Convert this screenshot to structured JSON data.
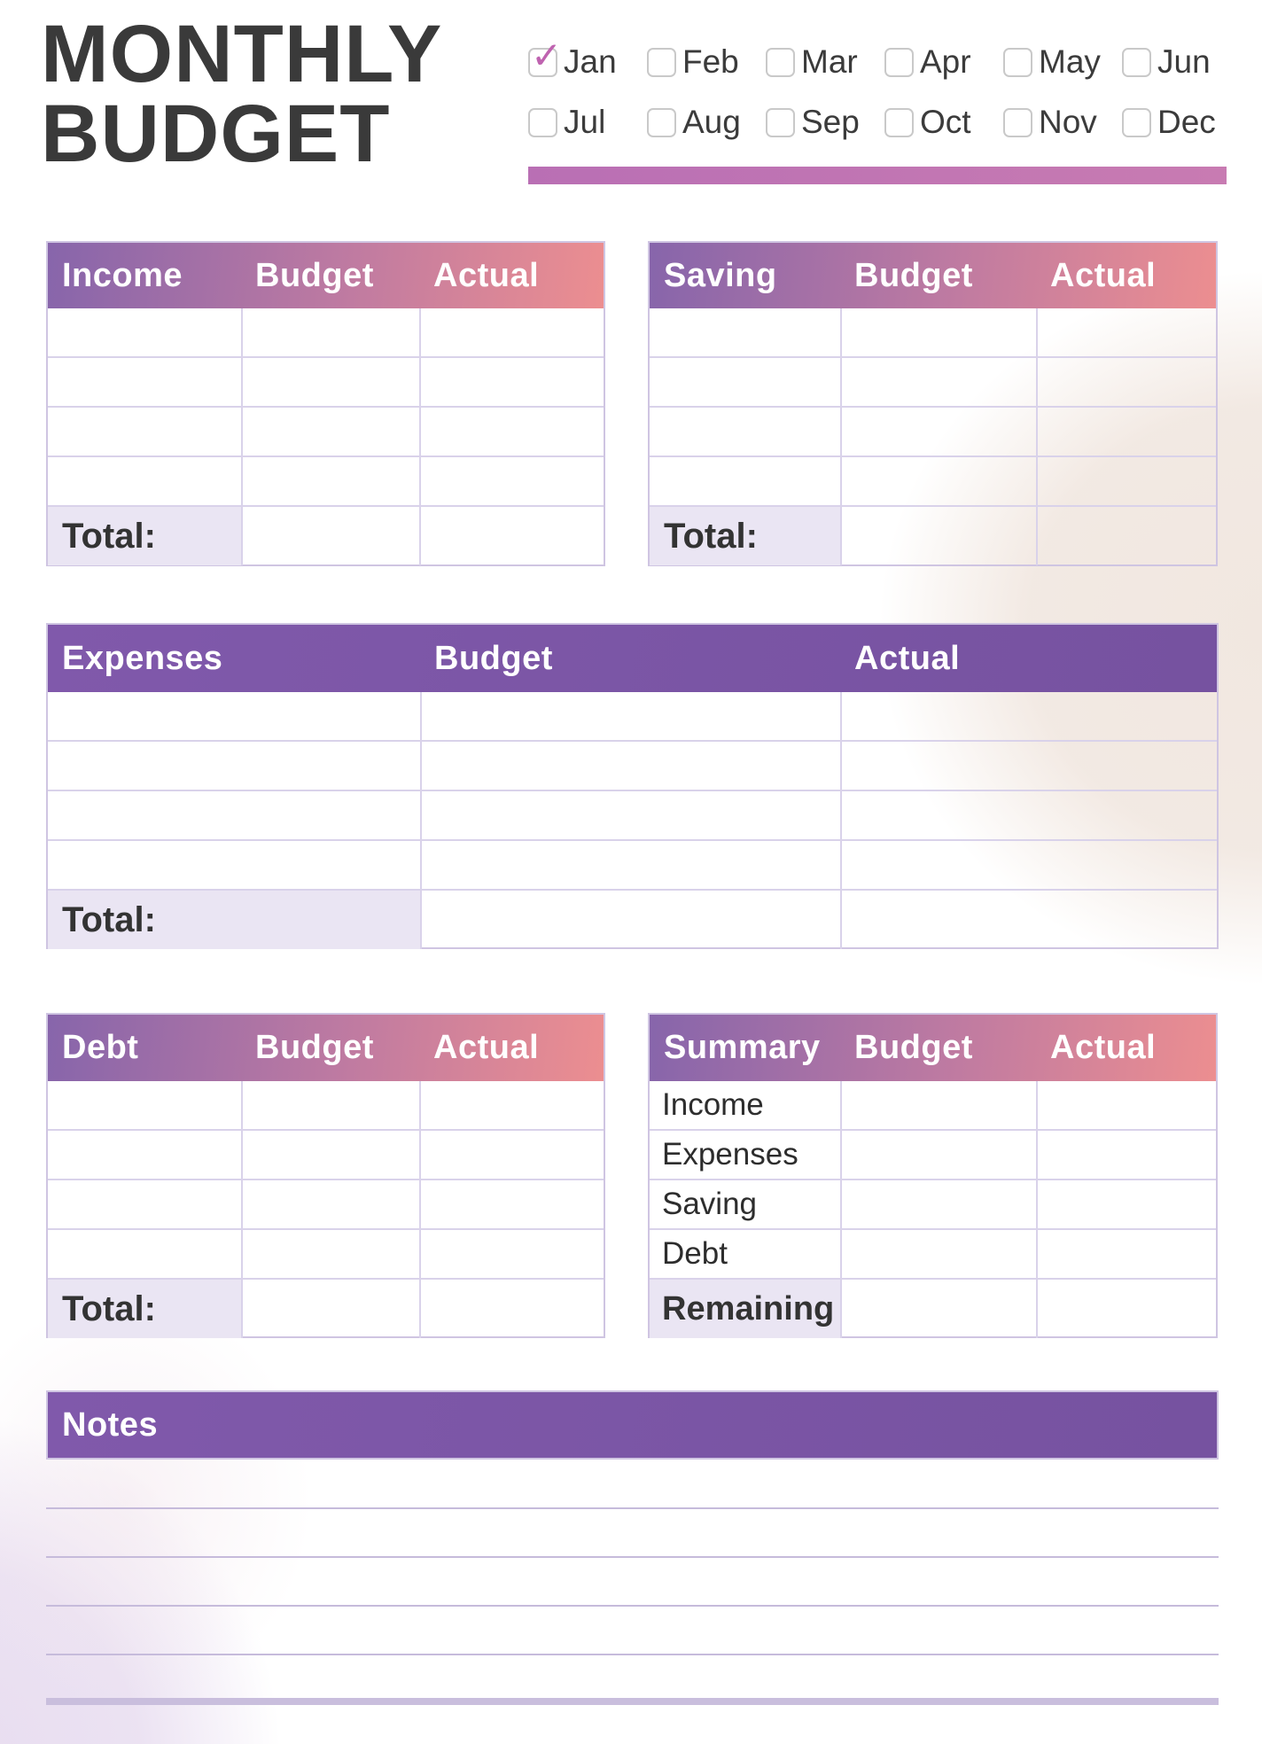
{
  "title": {
    "line1": "MONTHLY",
    "line2": "BUDGET"
  },
  "month_selector": {
    "months": [
      {
        "label": "Jan",
        "checked": true
      },
      {
        "label": "Feb",
        "checked": false
      },
      {
        "label": "Mar",
        "checked": false
      },
      {
        "label": "Apr",
        "checked": false
      },
      {
        "label": "May",
        "checked": false
      },
      {
        "label": "Jun",
        "checked": false
      },
      {
        "label": "Jul",
        "checked": false
      },
      {
        "label": "Aug",
        "checked": false
      },
      {
        "label": "Sep",
        "checked": false
      },
      {
        "label": "Oct",
        "checked": false
      },
      {
        "label": "Nov",
        "checked": false
      },
      {
        "label": "Dec",
        "checked": false
      }
    ]
  },
  "tables": {
    "income": {
      "title": "Income",
      "col2": "Budget",
      "col3": "Actual",
      "total_label": "Total:",
      "empty_rows": 4
    },
    "saving": {
      "title": "Saving",
      "col2": "Budget",
      "col3": "Actual",
      "total_label": "Total:",
      "empty_rows": 4
    },
    "expenses": {
      "title": "Expenses",
      "col2": "Budget",
      "col3": "Actual",
      "total_label": "Total:",
      "empty_rows": 4
    },
    "debt": {
      "title": "Debt",
      "col2": "Budget",
      "col3": "Actual",
      "total_label": "Total:",
      "empty_rows": 4
    },
    "summary": {
      "title": "Summary",
      "col2": "Budget",
      "col3": "Actual",
      "rows": [
        "Income",
        "Expenses",
        "Saving",
        "Debt"
      ],
      "footer_label": "Remaining"
    }
  },
  "notes": {
    "title": "Notes",
    "ruled_lines": 5
  },
  "colors": {
    "header_gradient_start": "#8765ab",
    "header_gradient_mid": "#c07ba1",
    "header_gradient_end": "#ec8e90",
    "solid_header_light": "#8059ab",
    "solid_header_dark": "#7652a0",
    "total_row_bg": "#eae5f3",
    "cell_border": "#d9d2ea",
    "table_border": "#cfc5e2",
    "check_mark": "#bf63b0",
    "month_bar_start": "#b96fb4",
    "month_bar_end": "#c87bb2",
    "title_ink": "#3a3a3a",
    "notes_rule": "#c6bbdb",
    "notes_rule_thick": "#c9bedd"
  }
}
